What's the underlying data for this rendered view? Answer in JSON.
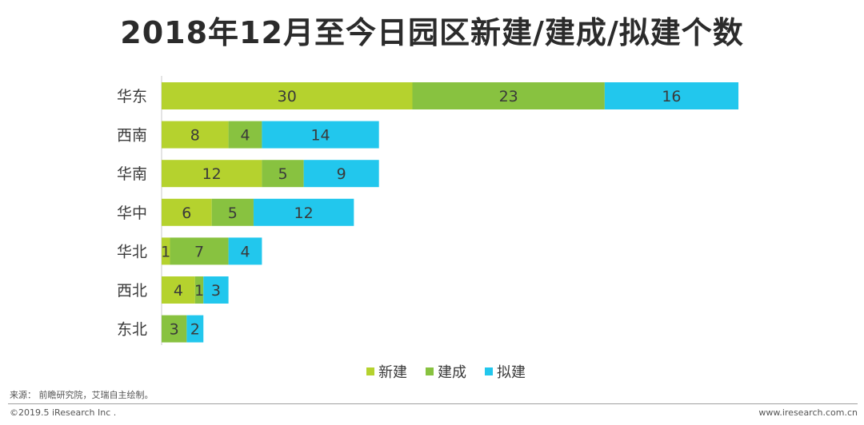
{
  "chart_data": {
    "type": "bar",
    "orientation": "horizontal",
    "stacked": true,
    "title": "2018年12月至今日园区新建/建成/拟建个数",
    "categories": [
      "华东",
      "西南",
      "华南",
      "华中",
      "华北",
      "西北",
      "东北"
    ],
    "series": [
      {
        "name": "新建",
        "color": "#b5d22e",
        "values": [
          30,
          8,
          12,
          6,
          1,
          4,
          0
        ]
      },
      {
        "name": "建成",
        "color": "#88c240",
        "values": [
          23,
          4,
          5,
          5,
          7,
          1,
          3
        ]
      },
      {
        "name": "拟建",
        "color": "#22c7ed",
        "values": [
          16,
          14,
          9,
          12,
          4,
          3,
          2
        ]
      }
    ],
    "grid": false,
    "legend_position": "bottom"
  },
  "footer": {
    "source": "来源： 前瞻研究院，艾瑞自主绘制。",
    "copyright": "©2019.5 iResearch Inc .",
    "website": "www.iresearch.com.cn"
  }
}
